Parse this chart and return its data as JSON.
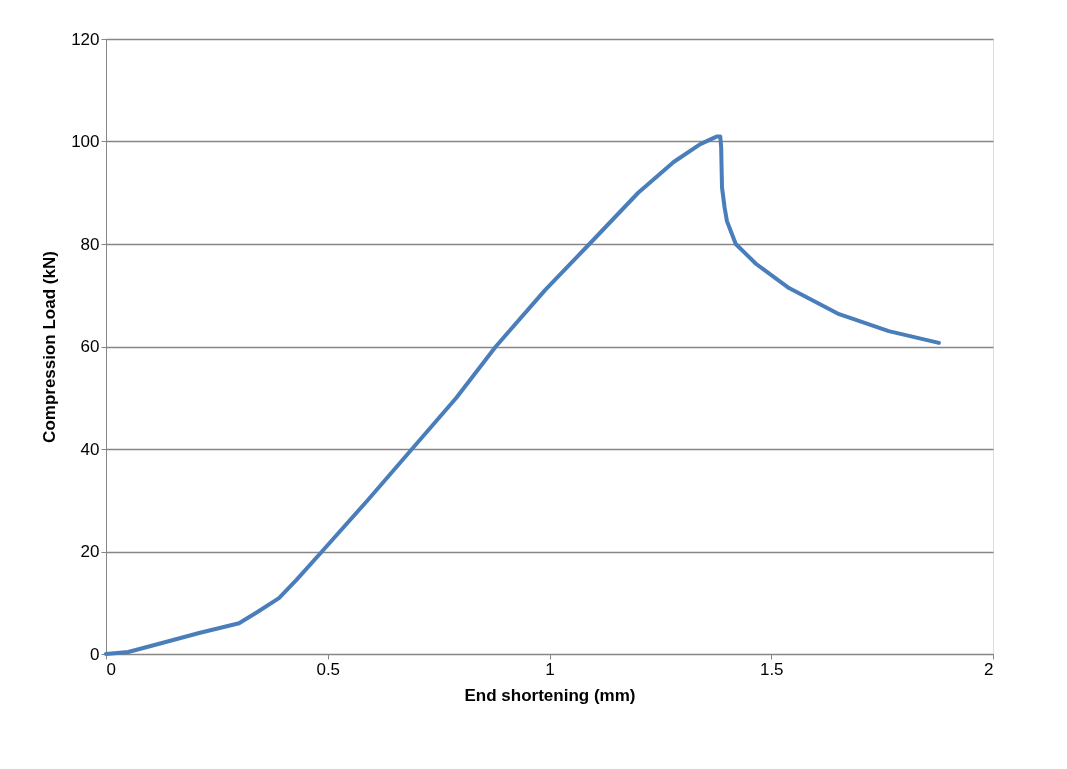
{
  "chart_data": {
    "type": "line",
    "xlabel": "End shortening (mm)",
    "ylabel": "Compression Load (kN)",
    "x": [
      0,
      0.05,
      0.12,
      0.21,
      0.3,
      0.345,
      0.39,
      0.43,
      0.487,
      0.59,
      0.69,
      0.79,
      0.879,
      0.99,
      1.09,
      1.2,
      1.28,
      1.34,
      1.378,
      1.385,
      1.387,
      1.389,
      1.395,
      1.4,
      1.42,
      1.466,
      1.54,
      1.653,
      1.765,
      1.878
    ],
    "series": [
      {
        "color": "#4a7ebb",
        "values": [
          0,
          0.4,
          2,
          4.1,
          6,
          8.4,
          10.9,
          14.5,
          20,
          30,
          40,
          50,
          60,
          71,
          80,
          90,
          96,
          99.5,
          101,
          101,
          99,
          91,
          87,
          84.5,
          80,
          76.1,
          71.4,
          66.3,
          63,
          60.7
        ]
      }
    ],
    "xlim": [
      0,
      2
    ],
    "xticks": [
      0,
      0.5,
      1,
      1.5,
      2
    ],
    "ylim": [
      0,
      120
    ],
    "yticks": [
      0,
      20,
      40,
      60,
      80,
      100,
      120
    ],
    "grid": "y",
    "marker": "none",
    "line_style": "solid"
  }
}
